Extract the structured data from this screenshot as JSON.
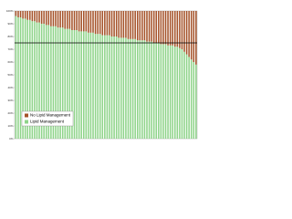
{
  "chart_data": {
    "type": "stacked_bar",
    "categories": [
      null,
      null,
      null,
      null,
      null,
      null,
      null,
      null,
      null,
      null,
      null,
      null,
      null,
      null,
      null,
      null,
      null,
      null,
      null,
      null,
      null,
      null,
      null,
      null,
      null,
      null,
      null,
      null,
      null,
      null,
      null,
      null,
      null,
      null,
      null,
      null,
      null,
      null,
      null,
      null,
      null,
      null,
      null,
      null,
      null,
      null,
      null,
      null,
      null,
      null,
      null,
      null,
      null,
      null,
      null,
      null,
      null,
      null,
      null,
      null,
      null,
      null,
      null,
      null,
      null,
      null,
      null,
      null,
      null,
      null,
      null,
      null,
      null,
      null,
      null,
      null,
      null,
      null
    ],
    "series": [
      {
        "name": "No Lipid Management",
        "color": "#a5532a",
        "values": [
          4,
          5,
          5,
          6,
          6,
          7,
          7,
          8,
          8,
          9,
          9,
          10,
          10,
          11,
          11,
          12,
          12,
          12,
          13,
          13,
          13,
          14,
          14,
          14,
          15,
          15,
          15,
          16,
          16,
          16,
          16,
          17,
          17,
          17,
          18,
          18,
          18,
          19,
          19,
          19,
          19,
          20,
          20,
          20,
          21,
          21,
          21,
          21,
          22,
          22,
          22,
          22,
          23,
          23,
          23,
          23,
          24,
          24,
          24,
          25,
          25,
          25,
          26,
          26,
          26,
          27,
          27,
          27,
          28,
          28,
          29,
          30,
          32,
          34,
          36,
          38,
          40,
          42
        ]
      },
      {
        "name": "Lipid Management",
        "color": "#8fd48a",
        "values": [
          96,
          95,
          95,
          94,
          94,
          93,
          93,
          92,
          92,
          91,
          91,
          90,
          90,
          89,
          89,
          88,
          88,
          88,
          87,
          87,
          87,
          86,
          86,
          86,
          85,
          85,
          85,
          84,
          84,
          84,
          84,
          83,
          83,
          83,
          82,
          82,
          82,
          81,
          81,
          81,
          81,
          80,
          80,
          80,
          79,
          79,
          79,
          79,
          78,
          78,
          78,
          78,
          77,
          77,
          77,
          77,
          76,
          76,
          76,
          75,
          75,
          75,
          74,
          74,
          74,
          73,
          73,
          73,
          72,
          72,
          71,
          70,
          68,
          66,
          64,
          62,
          60,
          58
        ]
      }
    ],
    "ylim": [
      0,
      100
    ],
    "yticks": [
      {
        "value": 0,
        "label": "0%"
      },
      {
        "value": 10,
        "label": "10%"
      },
      {
        "value": 20,
        "label": "20%"
      },
      {
        "value": 30,
        "label": "30%"
      },
      {
        "value": 40,
        "label": "40%"
      },
      {
        "value": 50,
        "label": "50%"
      },
      {
        "value": 60,
        "label": "60%"
      },
      {
        "value": 70,
        "label": "70%"
      },
      {
        "value": 80,
        "label": "80%"
      },
      {
        "value": 90,
        "label": "90%"
      },
      {
        "value": 100,
        "label": "100%"
      }
    ],
    "reference_line": 75,
    "legend": "lower-left"
  }
}
